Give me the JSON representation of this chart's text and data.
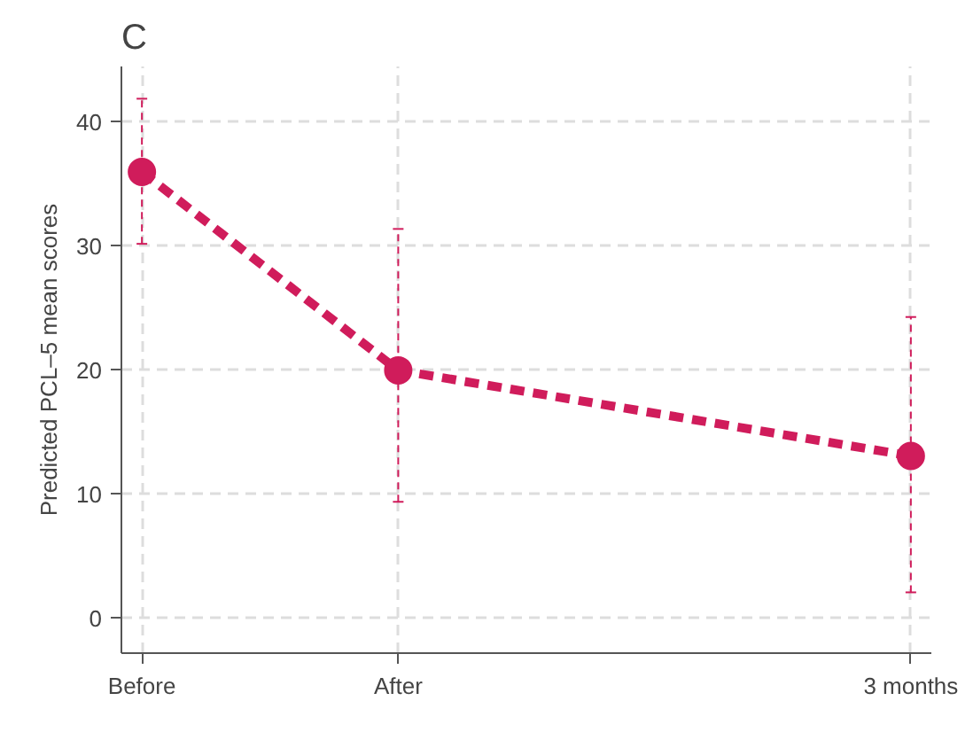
{
  "chart_data": {
    "type": "line",
    "title": "C",
    "ylabel": "Predicted PCL–5 mean scores",
    "categories": [
      "Before",
      "After",
      null,
      "3 months"
    ],
    "series": [
      {
        "color": "#d01c5b",
        "values": [
          36,
          20,
          null,
          13.1
        ],
        "errors": [
          [
            30.2,
            41.9
          ],
          [
            9.4,
            31.4
          ],
          null,
          [
            2.1,
            24.3
          ]
        ]
      }
    ],
    "ylim": [
      -2.8,
      44.5
    ],
    "yticks": [
      0,
      10,
      20,
      30,
      40
    ],
    "grid": true,
    "marker": "circle",
    "line_style": "dashed"
  }
}
